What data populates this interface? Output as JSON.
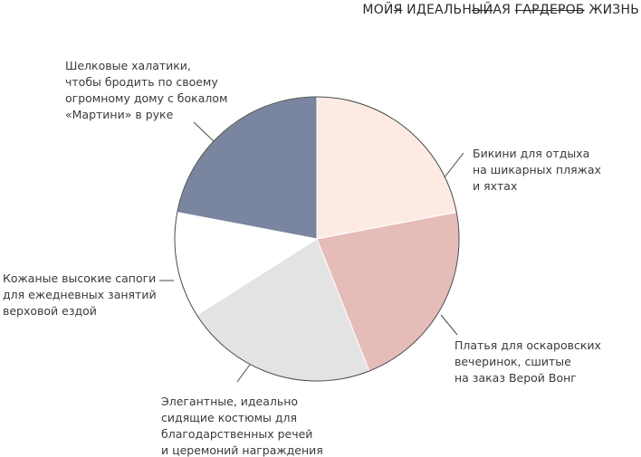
{
  "title": {
    "parts": [
      {
        "text": "МОЙ",
        "strike": false
      },
      {
        "text": "Я",
        "strike": true
      },
      {
        "text": " ИДЕАЛЬН",
        "strike": false
      },
      {
        "text": "ЫЙ",
        "strike": true
      },
      {
        "text": "АЯ ",
        "strike": false
      },
      {
        "text": "ГАРДЕРОБ",
        "strike": true
      },
      {
        "text": " ЖИЗНЬ",
        "strike": false
      }
    ]
  },
  "chart_data": {
    "type": "pie",
    "title": "МОЙЯ ИДЕАЛЬНЫЙАЯ ГАРДЕРОБ ЖИЗНЬ",
    "start_angle_deg": 0,
    "direction": "clockwise",
    "slices": [
      {
        "label_lines": [
          "Бикини для отдыха",
          "на шикарных пляжах",
          "и яхтах"
        ],
        "value": 22,
        "color": "#fdebe3"
      },
      {
        "label_lines": [
          "Платья для оскаровских",
          "вечеринок, сшитые",
          "на заказ Верой Вонг"
        ],
        "value": 22,
        "color": "#e6bcb8"
      },
      {
        "label_lines": [
          "Элегантные, идеально",
          "сидящие костюмы для",
          "благодарственных речей",
          "и церемоний награждения"
        ],
        "value": 22,
        "color": "#e2e3e2"
      },
      {
        "label_lines": [
          "Кожаные высокие сапоги",
          "для ежедневных занятий",
          "верховой ездой"
        ],
        "value": 12,
        "color": "#ffffff"
      },
      {
        "label_lines": [
          "Шелковые халатики,",
          "чтобы бродить по своему",
          "огромному дому с бокалом",
          "«Мартини» в руке"
        ],
        "value": 22,
        "color": "#7a869f"
      }
    ]
  }
}
